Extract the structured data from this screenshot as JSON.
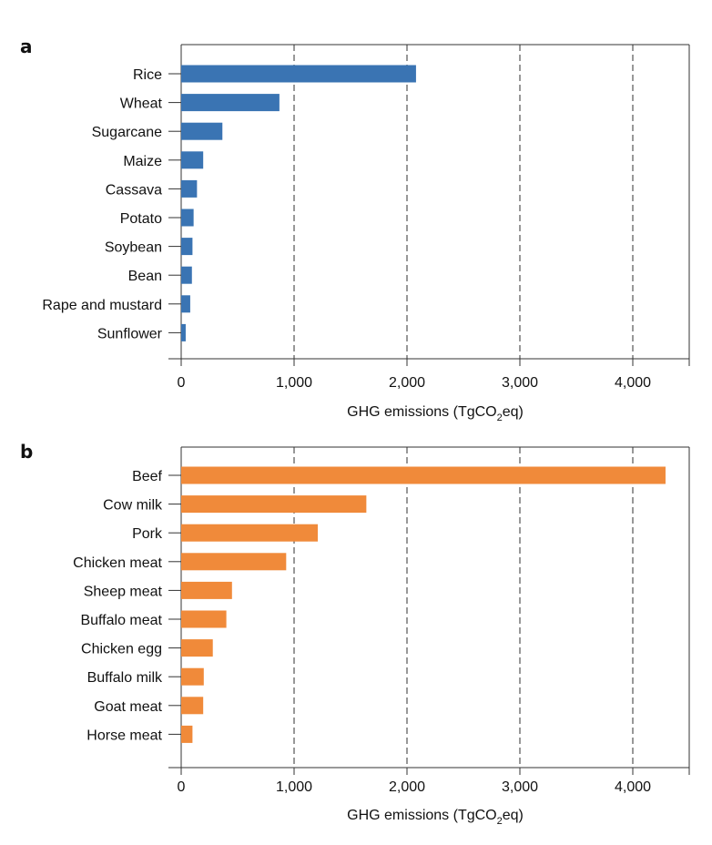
{
  "chart_data": [
    {
      "type": "bar",
      "orientation": "horizontal",
      "panel": "a",
      "categories": [
        "Rice",
        "Wheat",
        "Sugarcane",
        "Maize",
        "Cassava",
        "Potato",
        "Soybean",
        "Bean",
        "Rape and mustard",
        "Sunflower"
      ],
      "values": [
        2080,
        870,
        365,
        195,
        140,
        110,
        100,
        95,
        80,
        40
      ],
      "xlabel_main": "GHG emissions (TgCO",
      "xlabel_sub": "2",
      "xlabel_tail": "eq)",
      "xlim": [
        0,
        4500
      ],
      "xticks": [
        0,
        1000,
        2000,
        3000,
        4000
      ],
      "xtick_labels": [
        "0",
        "1,000",
        "2,000",
        "3,000",
        "4,000"
      ],
      "grid": "vertical dashed",
      "color": "#3a74b3"
    },
    {
      "type": "bar",
      "orientation": "horizontal",
      "panel": "b",
      "categories": [
        "Beef",
        "Cow milk",
        "Pork",
        "Chicken meat",
        "Sheep meat",
        "Buffalo meat",
        "Chicken egg",
        "Buffalo milk",
        "Goat meat",
        "Horse meat"
      ],
      "values": [
        4290,
        1640,
        1210,
        930,
        450,
        400,
        280,
        200,
        195,
        100
      ],
      "xlabel_main": "GHG emissions (TgCO",
      "xlabel_sub": "2",
      "xlabel_tail": "eq)",
      "xlim": [
        0,
        4500
      ],
      "xticks": [
        0,
        1000,
        2000,
        3000,
        4000
      ],
      "xtick_labels": [
        "0",
        "1,000",
        "2,000",
        "3,000",
        "4,000"
      ],
      "grid": "vertical dashed",
      "color": "#f08a3a"
    }
  ]
}
